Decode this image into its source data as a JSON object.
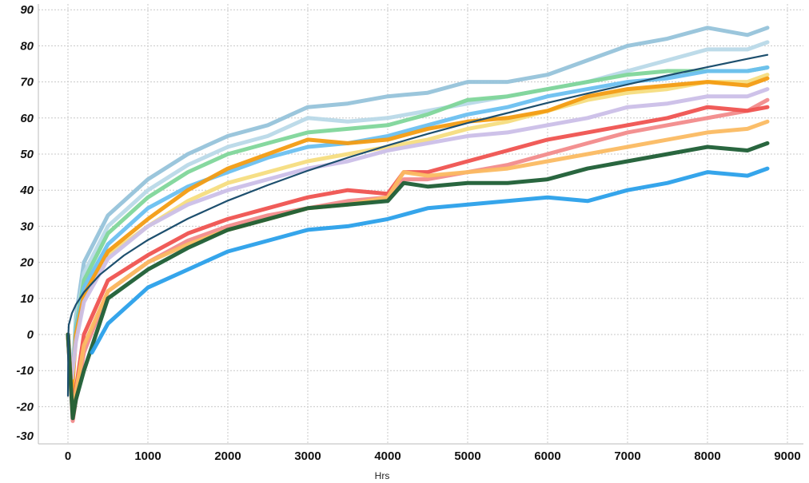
{
  "chart_data": {
    "type": "line",
    "title": "",
    "xlabel": "Hrs",
    "ylabel": "",
    "xlim": [
      -370,
      9000
    ],
    "ylim": [
      -30,
      90
    ],
    "xticks": [
      0,
      1000,
      2000,
      3000,
      4000,
      5000,
      6000,
      7000,
      8000,
      9000
    ],
    "yticks": [
      90,
      80,
      70,
      60,
      50,
      40,
      30,
      20,
      10,
      0,
      -10,
      -20,
      -30
    ],
    "grid": true,
    "legend": "none",
    "series": [
      {
        "color": "#96c3da",
        "points": [
          [
            0,
            0
          ],
          [
            50,
            -15
          ],
          [
            100,
            5
          ],
          [
            200,
            20
          ],
          [
            500,
            33
          ],
          [
            1000,
            43
          ],
          [
            1500,
            50
          ],
          [
            2000,
            55
          ],
          [
            2500,
            58
          ],
          [
            3000,
            63
          ],
          [
            3500,
            64
          ],
          [
            4000,
            66
          ],
          [
            4500,
            67
          ],
          [
            5000,
            70
          ],
          [
            5500,
            70
          ],
          [
            6000,
            72
          ],
          [
            6500,
            76
          ],
          [
            7000,
            80
          ],
          [
            7500,
            82
          ],
          [
            8000,
            85
          ],
          [
            8500,
            83
          ],
          [
            8750,
            85
          ]
        ]
      },
      {
        "color": "#b9d9e8",
        "points": [
          [
            0,
            0
          ],
          [
            50,
            -12
          ],
          [
            100,
            3
          ],
          [
            200,
            17
          ],
          [
            500,
            30
          ],
          [
            1000,
            40
          ],
          [
            1500,
            47
          ],
          [
            2000,
            52
          ],
          [
            2500,
            55
          ],
          [
            3000,
            60
          ],
          [
            3500,
            59
          ],
          [
            4000,
            60
          ],
          [
            4500,
            62
          ],
          [
            5000,
            64
          ],
          [
            5500,
            66
          ],
          [
            6000,
            68
          ],
          [
            6500,
            70
          ],
          [
            7000,
            73
          ],
          [
            7500,
            76
          ],
          [
            8000,
            79
          ],
          [
            8500,
            79
          ],
          [
            8750,
            81
          ]
        ]
      },
      {
        "color": "#7fd69a",
        "points": [
          [
            0,
            0
          ],
          [
            50,
            -14
          ],
          [
            100,
            2
          ],
          [
            200,
            15
          ],
          [
            500,
            28
          ],
          [
            1000,
            38
          ],
          [
            1500,
            45
          ],
          [
            2000,
            50
          ],
          [
            2500,
            53
          ],
          [
            3000,
            56
          ],
          [
            3500,
            57
          ],
          [
            4000,
            58
          ],
          [
            4500,
            61
          ],
          [
            5000,
            65
          ],
          [
            5500,
            66
          ],
          [
            6000,
            68
          ],
          [
            6500,
            70
          ],
          [
            7000,
            72
          ],
          [
            7500,
            73
          ],
          [
            8000,
            73
          ],
          [
            8500,
            73
          ],
          [
            8750,
            74
          ]
        ]
      },
      {
        "color": "#6cc0f0",
        "points": [
          [
            0,
            0
          ],
          [
            50,
            -14
          ],
          [
            100,
            1
          ],
          [
            200,
            13
          ],
          [
            500,
            25
          ],
          [
            1000,
            35
          ],
          [
            1500,
            41
          ],
          [
            2000,
            45
          ],
          [
            2500,
            49
          ],
          [
            3000,
            52
          ],
          [
            3500,
            53
          ],
          [
            4000,
            55
          ],
          [
            4500,
            58
          ],
          [
            5000,
            61
          ],
          [
            5500,
            63
          ],
          [
            6000,
            66
          ],
          [
            6500,
            68
          ],
          [
            7000,
            70
          ],
          [
            7500,
            71
          ],
          [
            8000,
            73
          ],
          [
            8500,
            73
          ],
          [
            8750,
            74
          ]
        ]
      },
      {
        "color": "#f5dd80",
        "points": [
          [
            0,
            0
          ],
          [
            50,
            -16
          ],
          [
            100,
            -1
          ],
          [
            200,
            10
          ],
          [
            500,
            22
          ],
          [
            1000,
            30
          ],
          [
            1500,
            37
          ],
          [
            2000,
            42
          ],
          [
            2500,
            45
          ],
          [
            3000,
            48
          ],
          [
            3500,
            50
          ],
          [
            4000,
            52
          ],
          [
            4500,
            54
          ],
          [
            5000,
            57
          ],
          [
            5500,
            59
          ],
          [
            6000,
            62
          ],
          [
            6500,
            65
          ],
          [
            7000,
            67
          ],
          [
            7500,
            68
          ],
          [
            8000,
            70
          ],
          [
            8500,
            70
          ],
          [
            8750,
            72
          ]
        ]
      },
      {
        "color": "#f39c12",
        "points": [
          [
            0,
            0
          ],
          [
            50,
            -16
          ],
          [
            100,
            0
          ],
          [
            200,
            11
          ],
          [
            500,
            23
          ],
          [
            1000,
            32
          ],
          [
            1500,
            40
          ],
          [
            2000,
            46
          ],
          [
            2500,
            50
          ],
          [
            3000,
            54
          ],
          [
            3500,
            53
          ],
          [
            4000,
            54
          ],
          [
            4500,
            57
          ],
          [
            5000,
            59
          ],
          [
            5500,
            60
          ],
          [
            6000,
            62
          ],
          [
            6500,
            66
          ],
          [
            7000,
            68
          ],
          [
            7500,
            69
          ],
          [
            8000,
            70
          ],
          [
            8500,
            69
          ],
          [
            8750,
            71
          ]
        ]
      },
      {
        "color": "#cbbfe8",
        "points": [
          [
            0,
            0
          ],
          [
            50,
            -12
          ],
          [
            100,
            -2
          ],
          [
            200,
            9
          ],
          [
            500,
            21
          ],
          [
            1000,
            30
          ],
          [
            1500,
            36
          ],
          [
            2000,
            40
          ],
          [
            2500,
            43
          ],
          [
            3000,
            46
          ],
          [
            3500,
            48
          ],
          [
            4000,
            51
          ],
          [
            4500,
            53
          ],
          [
            5000,
            55
          ],
          [
            5500,
            56
          ],
          [
            6000,
            58
          ],
          [
            6500,
            60
          ],
          [
            7000,
            63
          ],
          [
            7500,
            64
          ],
          [
            8000,
            66
          ],
          [
            8500,
            66
          ],
          [
            8750,
            68
          ]
        ]
      },
      {
        "color": "#f28b8b",
        "points": [
          [
            0,
            0
          ],
          [
            60,
            -25
          ],
          [
            100,
            -18
          ],
          [
            200,
            -5
          ],
          [
            500,
            12
          ],
          [
            1000,
            20
          ],
          [
            1500,
            26
          ],
          [
            2000,
            30
          ],
          [
            2500,
            33
          ],
          [
            3000,
            35
          ],
          [
            3500,
            37
          ],
          [
            4000,
            38
          ],
          [
            4200,
            43
          ],
          [
            4500,
            43
          ],
          [
            5000,
            45
          ],
          [
            5500,
            47
          ],
          [
            6000,
            50
          ],
          [
            6500,
            53
          ],
          [
            7000,
            56
          ],
          [
            7500,
            58
          ],
          [
            8000,
            60
          ],
          [
            8500,
            62
          ],
          [
            8750,
            65
          ]
        ]
      },
      {
        "color": "#ef5350",
        "points": [
          [
            0,
            0
          ],
          [
            60,
            -22
          ],
          [
            100,
            -15
          ],
          [
            200,
            0
          ],
          [
            500,
            15
          ],
          [
            1000,
            22
          ],
          [
            1500,
            28
          ],
          [
            2000,
            32
          ],
          [
            2500,
            35
          ],
          [
            3000,
            38
          ],
          [
            3500,
            40
          ],
          [
            4000,
            39
          ],
          [
            4200,
            45
          ],
          [
            4500,
            45
          ],
          [
            5000,
            48
          ],
          [
            5500,
            51
          ],
          [
            6000,
            54
          ],
          [
            6500,
            56
          ],
          [
            7000,
            58
          ],
          [
            7500,
            60
          ],
          [
            8000,
            63
          ],
          [
            8500,
            62
          ],
          [
            8750,
            63
          ]
        ]
      },
      {
        "color": "#fbbb62",
        "points": [
          [
            0,
            0
          ],
          [
            60,
            -22
          ],
          [
            100,
            -16
          ],
          [
            200,
            -3
          ],
          [
            500,
            12
          ],
          [
            1000,
            20
          ],
          [
            1500,
            25
          ],
          [
            2000,
            29
          ],
          [
            2500,
            32
          ],
          [
            3000,
            35
          ],
          [
            3500,
            36
          ],
          [
            4000,
            38
          ],
          [
            4200,
            45
          ],
          [
            4500,
            44
          ],
          [
            5000,
            45
          ],
          [
            5500,
            46
          ],
          [
            6000,
            48
          ],
          [
            6500,
            50
          ],
          [
            7000,
            52
          ],
          [
            7500,
            54
          ],
          [
            8000,
            56
          ],
          [
            8500,
            57
          ],
          [
            8750,
            59
          ]
        ]
      },
      {
        "color": "#1e5e35",
        "points": [
          [
            0,
            0
          ],
          [
            60,
            -24
          ],
          [
            100,
            -18
          ],
          [
            200,
            -10
          ],
          [
            500,
            10
          ],
          [
            1000,
            18
          ],
          [
            1500,
            24
          ],
          [
            2000,
            29
          ],
          [
            2500,
            32
          ],
          [
            3000,
            35
          ],
          [
            3500,
            36
          ],
          [
            4000,
            37
          ],
          [
            4200,
            42
          ],
          [
            4500,
            41
          ],
          [
            5000,
            42
          ],
          [
            5500,
            42
          ],
          [
            6000,
            43
          ],
          [
            6500,
            46
          ],
          [
            7000,
            48
          ],
          [
            7500,
            50
          ],
          [
            8000,
            52
          ],
          [
            8500,
            51
          ],
          [
            8750,
            53
          ]
        ]
      },
      {
        "color": "#2aa0ea",
        "points": [
          [
            300,
            -5
          ],
          [
            500,
            3
          ],
          [
            750,
            8
          ],
          [
            1000,
            13
          ],
          [
            1500,
            18
          ],
          [
            2000,
            23
          ],
          [
            2500,
            26
          ],
          [
            3000,
            29
          ],
          [
            3500,
            30
          ],
          [
            4000,
            32
          ],
          [
            4500,
            35
          ],
          [
            5000,
            36
          ],
          [
            5500,
            37
          ],
          [
            6000,
            38
          ],
          [
            6500,
            37
          ],
          [
            7000,
            40
          ],
          [
            7500,
            42
          ],
          [
            8000,
            45
          ],
          [
            8500,
            44
          ],
          [
            8750,
            46
          ]
        ]
      },
      {
        "color": "#1d4f6e",
        "smooth": true,
        "points": [
          [
            0,
            -17
          ],
          [
            5,
            0
          ],
          [
            10,
            2.6
          ],
          [
            50,
            5.9
          ],
          [
            100,
            8.3
          ],
          [
            200,
            11.7
          ],
          [
            400,
            16.6
          ],
          [
            700,
            21.9
          ],
          [
            1000,
            26.2
          ],
          [
            1500,
            32.1
          ],
          [
            2000,
            37.1
          ],
          [
            2500,
            41.4
          ],
          [
            3000,
            45.4
          ],
          [
            3500,
            49
          ],
          [
            4000,
            52.4
          ],
          [
            4500,
            55.6
          ],
          [
            5000,
            58.6
          ],
          [
            5500,
            61.4
          ],
          [
            6000,
            64.2
          ],
          [
            6500,
            66.8
          ],
          [
            7000,
            69.3
          ],
          [
            7500,
            71.8
          ],
          [
            8000,
            74.1
          ],
          [
            8500,
            76.4
          ],
          [
            8750,
            77.5
          ]
        ]
      }
    ]
  }
}
